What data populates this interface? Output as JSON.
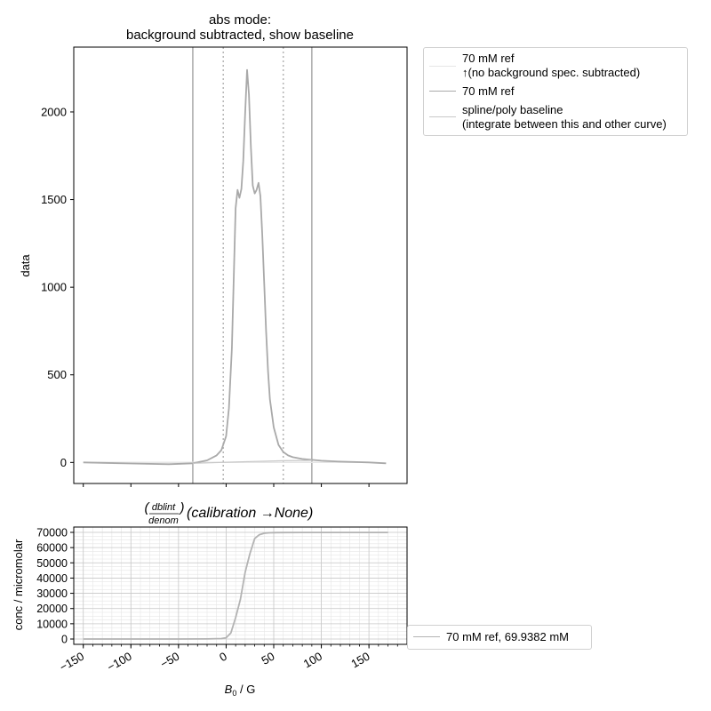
{
  "chart_data": [
    {
      "type": "line",
      "title": "abs mode:",
      "subtitle": "background subtracted, show baseline",
      "xlabel": "",
      "ylabel": "data",
      "xlim": [
        -160,
        190
      ],
      "ylim": [
        -120,
        2370
      ],
      "yticks": [
        "0",
        "500",
        "1000",
        "1500",
        "2000"
      ],
      "ytick_values": [
        0,
        500,
        1000,
        1500,
        2000
      ],
      "xtick_values": [
        -150,
        -100,
        -50,
        0,
        50,
        100,
        150
      ],
      "vlines_solid": [
        -35,
        90
      ],
      "vlines_dotted": [
        -3,
        60
      ],
      "series": [
        {
          "name": "70 mM ref ↑(no background spec. subtracted)",
          "color": "#e6e6e6",
          "x": [
            -150,
            150
          ],
          "y": [
            0,
            0
          ]
        },
        {
          "name": "70 mM ref",
          "color": "#a9a9a9",
          "x": [
            -150,
            -100,
            -60,
            -35,
            -20,
            -10,
            -5,
            0,
            3,
            6,
            8,
            10,
            12,
            14,
            16,
            18,
            20,
            22,
            24,
            26,
            28,
            30,
            32,
            34,
            36,
            38,
            40,
            42,
            44,
            46,
            50,
            55,
            60,
            65,
            70,
            80,
            90,
            100,
            120,
            150,
            168
          ],
          "y": [
            0,
            -6,
            -10,
            -5,
            12,
            40,
            70,
            150,
            310,
            650,
            1050,
            1450,
            1555,
            1510,
            1560,
            1720,
            2000,
            2240,
            2100,
            1800,
            1580,
            1535,
            1555,
            1595,
            1520,
            1300,
            1020,
            750,
            520,
            360,
            200,
            100,
            60,
            40,
            30,
            20,
            15,
            10,
            5,
            0,
            -5
          ]
        },
        {
          "name": "spline/poly baseline (integrate between this and other curve)",
          "color": "#c8c8c8",
          "x": [
            -35,
            0,
            30,
            60,
            90
          ],
          "y": [
            -5,
            1,
            6,
            10,
            12
          ]
        }
      ],
      "legend_placement": "outside upper right"
    },
    {
      "type": "line",
      "title": "(dblint / denom)(calibration → None)",
      "title_frac_num": "dblint",
      "title_frac_den": "denom",
      "title_rest": "(calibration →None)",
      "xlabel": "B₀ / G",
      "xlabel_main": "B",
      "xlabel_sub": "0",
      "xlabel_rest": " / G",
      "ylabel": "conc / micromolar",
      "xlim": [
        -160,
        190
      ],
      "ylim": [
        -3500,
        73500
      ],
      "xticks": [
        "−150",
        "−100",
        "−50",
        "0",
        "50",
        "100",
        "150"
      ],
      "xtick_values": [
        -150,
        -100,
        -50,
        0,
        50,
        100,
        150
      ],
      "yticks": [
        "0",
        "10000",
        "20000",
        "30000",
        "40000",
        "50000",
        "60000",
        "70000"
      ],
      "ytick_values": [
        0,
        10000,
        20000,
        30000,
        40000,
        50000,
        60000,
        70000
      ],
      "grid": true,
      "series": [
        {
          "name": "70 mM ref, 69.9382 mM",
          "color": "#b3b3b3",
          "x": [
            -150,
            -100,
            -50,
            -20,
            -5,
            0,
            5,
            10,
            15,
            20,
            25,
            30,
            35,
            40,
            45,
            50,
            60,
            80,
            120,
            160,
            170
          ],
          "y": [
            0,
            0,
            0,
            50,
            300,
            800,
            4000,
            14000,
            26000,
            44000,
            56000,
            66000,
            68500,
            69400,
            69700,
            69850,
            69900,
            69930,
            69938,
            69938,
            69938
          ]
        }
      ],
      "legend_placement": "outside lower right"
    }
  ],
  "legend1": {
    "entry1_line1": "70 mM ref",
    "entry1_line2": "↑(no background spec. subtracted)",
    "entry2": "70 mM ref",
    "entry3_line1": "spline/poly baseline",
    "entry3_line2": "(integrate between this and other curve)"
  },
  "legend2": {
    "entry1": "70 mM ref, 69.9382 mM"
  }
}
